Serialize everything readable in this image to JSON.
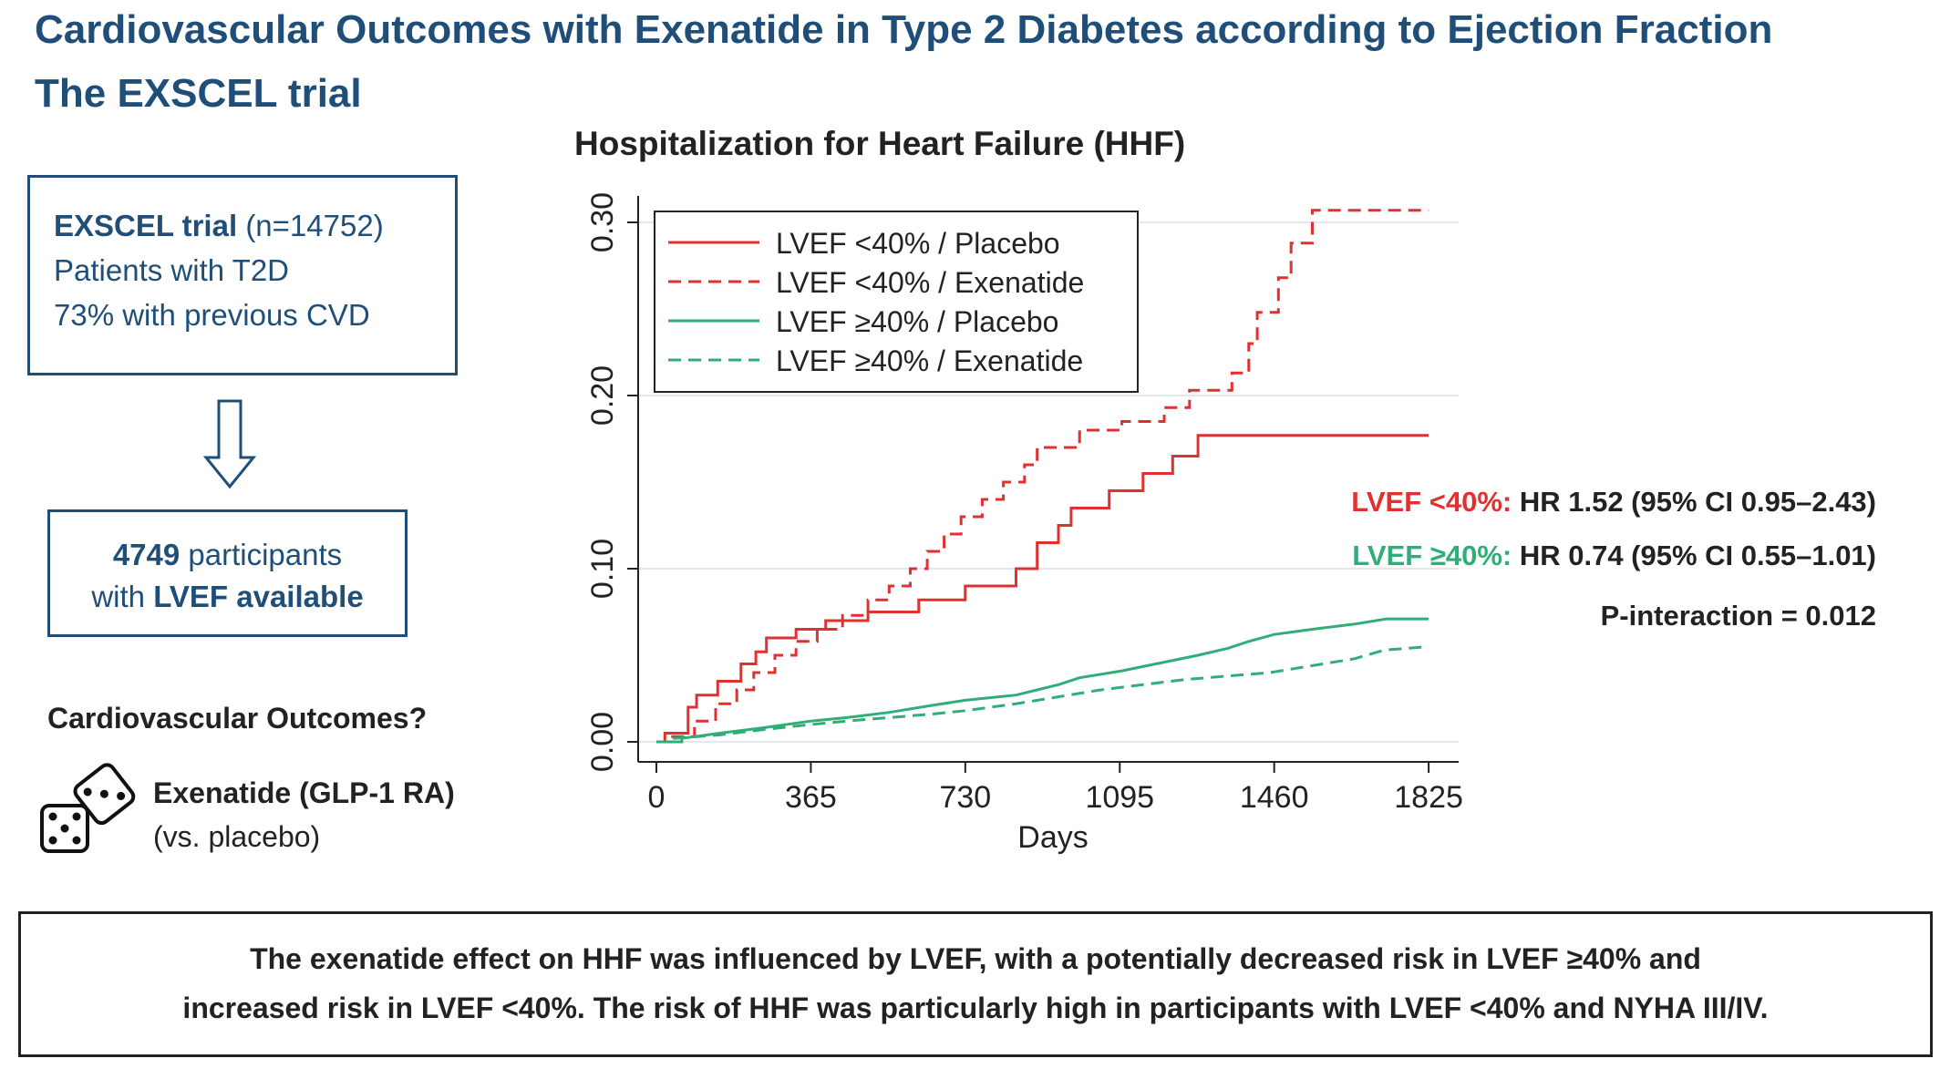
{
  "header": {
    "title": "Cardiovascular Outcomes with Exenatide in Type 2 Diabetes according to Ejection Fraction",
    "subtitle": "The EXSCEL trial"
  },
  "trial_box": {
    "name": "EXSCEL trial",
    "n": "(n=14752)",
    "line2": "Patients with T2D",
    "line3": "73% with previous CVD"
  },
  "participants_box": {
    "count": "4749",
    "line1_rest": " participants",
    "line2_pre": "with ",
    "line2_bold": "LVEF available"
  },
  "outcomes": {
    "question": "Cardiovascular Outcomes?",
    "drug": "Exenatide (GLP-1 RA)",
    "comparator": "(vs. placebo)"
  },
  "results": {
    "hr1_label": "LVEF <40%:",
    "hr1_value": " HR 1.52 (95% CI 0.95–2.43)",
    "hr2_label": "LVEF ≥40%:",
    "hr2_value": " HR 0.74 (95% CI 0.55–1.01)",
    "p_interaction": "P-interaction = 0.012"
  },
  "summary": {
    "line1": "The exenatide effect on HHF was influenced by LVEF, with a potentially decreased risk in LVEF ≥40% and",
    "line2": "increased risk in LVEF <40%. The risk of HHF was particularly high in participants with LVEF <40% and NYHA III/IV."
  },
  "colors": {
    "red": "#e03030",
    "green": "#2fae78",
    "navy": "#1f4e79"
  },
  "chart_data": {
    "type": "line",
    "title": "Hospitalization for Heart Failure (HHF)",
    "xlabel": "Days",
    "ylabel": "",
    "xlim": [
      0,
      1825
    ],
    "ylim": [
      0,
      0.3
    ],
    "x_ticks": [
      0,
      365,
      730,
      1095,
      1460,
      1825
    ],
    "x_tick_labels": [
      "0",
      "365",
      "730",
      "1095",
      "1460",
      "1825"
    ],
    "y_ticks": [
      0,
      0.1,
      0.2,
      0.3
    ],
    "y_tick_labels": [
      "0.00",
      "0.10",
      "0.20",
      "0.30"
    ],
    "grid": true,
    "legend_position": "top-left",
    "series": [
      {
        "name": "LVEF <40% / Placebo",
        "color": "#e03030",
        "dash": false,
        "points": [
          [
            0,
            0
          ],
          [
            20,
            0
          ],
          [
            20,
            0.005
          ],
          [
            75,
            0.005
          ],
          [
            75,
            0.02
          ],
          [
            95,
            0.02
          ],
          [
            95,
            0.027
          ],
          [
            145,
            0.027
          ],
          [
            145,
            0.035
          ],
          [
            200,
            0.035
          ],
          [
            200,
            0.045
          ],
          [
            235,
            0.045
          ],
          [
            235,
            0.052
          ],
          [
            260,
            0.052
          ],
          [
            260,
            0.06
          ],
          [
            330,
            0.06
          ],
          [
            330,
            0.065
          ],
          [
            400,
            0.065
          ],
          [
            400,
            0.07
          ],
          [
            500,
            0.07
          ],
          [
            500,
            0.075
          ],
          [
            620,
            0.075
          ],
          [
            620,
            0.082
          ],
          [
            730,
            0.082
          ],
          [
            730,
            0.09
          ],
          [
            850,
            0.09
          ],
          [
            850,
            0.1
          ],
          [
            900,
            0.1
          ],
          [
            900,
            0.115
          ],
          [
            950,
            0.115
          ],
          [
            950,
            0.125
          ],
          [
            980,
            0.125
          ],
          [
            980,
            0.135
          ],
          [
            1070,
            0.135
          ],
          [
            1070,
            0.145
          ],
          [
            1150,
            0.145
          ],
          [
            1150,
            0.155
          ],
          [
            1220,
            0.155
          ],
          [
            1220,
            0.165
          ],
          [
            1280,
            0.165
          ],
          [
            1280,
            0.177
          ],
          [
            1825,
            0.177
          ]
        ]
      },
      {
        "name": "LVEF <40% / Exenatide",
        "color": "#e03030",
        "dash": true,
        "points": [
          [
            0,
            0
          ],
          [
            30,
            0
          ],
          [
            30,
            0.003
          ],
          [
            90,
            0.003
          ],
          [
            90,
            0.012
          ],
          [
            140,
            0.012
          ],
          [
            140,
            0.022
          ],
          [
            190,
            0.022
          ],
          [
            190,
            0.03
          ],
          [
            230,
            0.03
          ],
          [
            230,
            0.04
          ],
          [
            280,
            0.04
          ],
          [
            280,
            0.05
          ],
          [
            330,
            0.05
          ],
          [
            330,
            0.058
          ],
          [
            380,
            0.058
          ],
          [
            380,
            0.065
          ],
          [
            440,
            0.065
          ],
          [
            440,
            0.073
          ],
          [
            500,
            0.073
          ],
          [
            500,
            0.082
          ],
          [
            550,
            0.082
          ],
          [
            550,
            0.09
          ],
          [
            600,
            0.09
          ],
          [
            600,
            0.1
          ],
          [
            640,
            0.1
          ],
          [
            640,
            0.11
          ],
          [
            680,
            0.11
          ],
          [
            680,
            0.12
          ],
          [
            720,
            0.12
          ],
          [
            720,
            0.13
          ],
          [
            770,
            0.13
          ],
          [
            770,
            0.14
          ],
          [
            820,
            0.14
          ],
          [
            820,
            0.15
          ],
          [
            870,
            0.15
          ],
          [
            870,
            0.16
          ],
          [
            900,
            0.16
          ],
          [
            900,
            0.17
          ],
          [
            1000,
            0.17
          ],
          [
            1000,
            0.18
          ],
          [
            1100,
            0.18
          ],
          [
            1100,
            0.185
          ],
          [
            1200,
            0.185
          ],
          [
            1200,
            0.193
          ],
          [
            1260,
            0.193
          ],
          [
            1260,
            0.203
          ],
          [
            1360,
            0.203
          ],
          [
            1360,
            0.213
          ],
          [
            1400,
            0.213
          ],
          [
            1400,
            0.23
          ],
          [
            1420,
            0.23
          ],
          [
            1420,
            0.248
          ],
          [
            1470,
            0.248
          ],
          [
            1470,
            0.268
          ],
          [
            1500,
            0.268
          ],
          [
            1500,
            0.288
          ],
          [
            1550,
            0.288
          ],
          [
            1550,
            0.307
          ],
          [
            1825,
            0.307
          ]
        ]
      },
      {
        "name": "LVEF ≥40% / Placebo",
        "color": "#2fae78",
        "dash": false,
        "points": [
          [
            0,
            0
          ],
          [
            60,
            0
          ],
          [
            60,
            0.002
          ],
          [
            150,
            0.005
          ],
          [
            250,
            0.008
          ],
          [
            365,
            0.012
          ],
          [
            450,
            0.014
          ],
          [
            550,
            0.017
          ],
          [
            650,
            0.021
          ],
          [
            730,
            0.024
          ],
          [
            850,
            0.027
          ],
          [
            950,
            0.033
          ],
          [
            1000,
            0.037
          ],
          [
            1100,
            0.041
          ],
          [
            1200,
            0.046
          ],
          [
            1280,
            0.05
          ],
          [
            1350,
            0.054
          ],
          [
            1400,
            0.058
          ],
          [
            1460,
            0.062
          ],
          [
            1550,
            0.065
          ],
          [
            1650,
            0.068
          ],
          [
            1725,
            0.071
          ],
          [
            1825,
            0.071
          ]
        ]
      },
      {
        "name": "LVEF ≥40% / Exenatide",
        "color": "#2fae78",
        "dash": true,
        "points": [
          [
            0,
            0
          ],
          [
            40,
            0
          ],
          [
            40,
            0.002
          ],
          [
            150,
            0.004
          ],
          [
            250,
            0.007
          ],
          [
            365,
            0.01
          ],
          [
            450,
            0.012
          ],
          [
            550,
            0.014
          ],
          [
            650,
            0.016
          ],
          [
            730,
            0.018
          ],
          [
            850,
            0.022
          ],
          [
            950,
            0.026
          ],
          [
            1050,
            0.03
          ],
          [
            1150,
            0.033
          ],
          [
            1250,
            0.036
          ],
          [
            1350,
            0.038
          ],
          [
            1450,
            0.04
          ],
          [
            1550,
            0.044
          ],
          [
            1650,
            0.048
          ],
          [
            1720,
            0.053
          ],
          [
            1825,
            0.055
          ]
        ]
      }
    ]
  }
}
